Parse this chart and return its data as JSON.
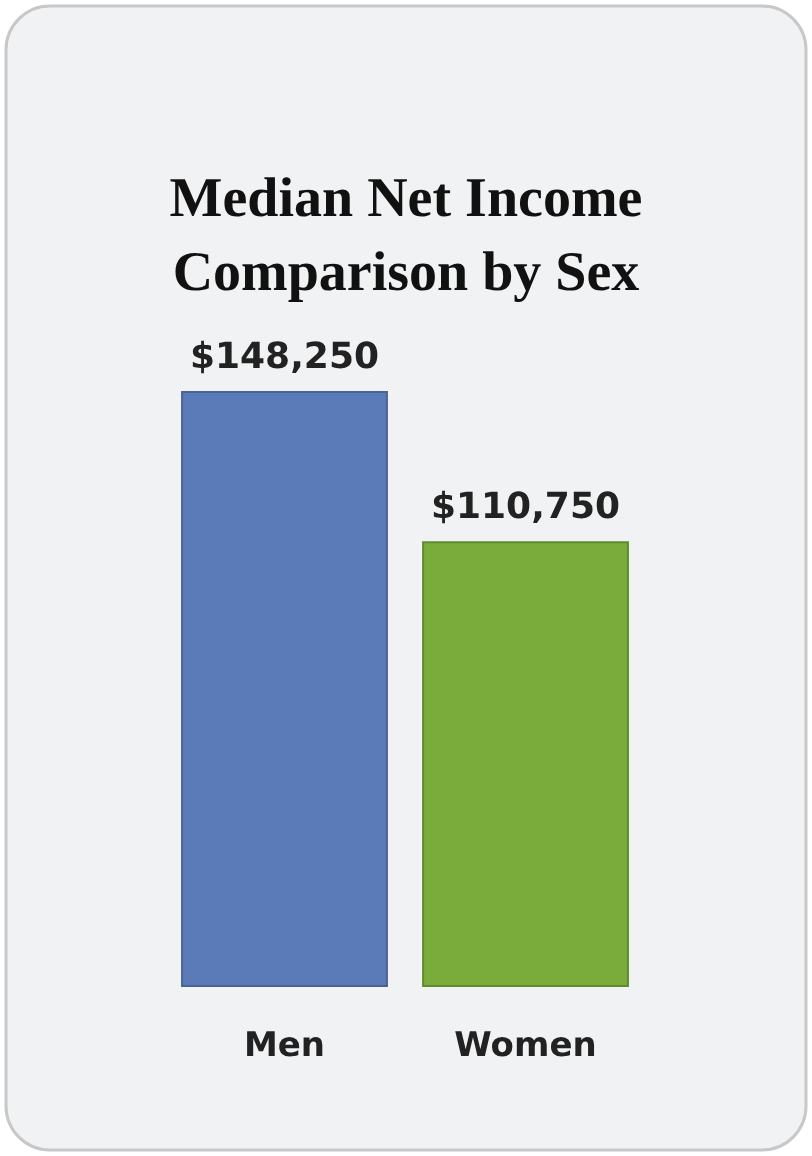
{
  "chart_data": {
    "type": "bar",
    "title": "Median Net Income Comparison by Sex",
    "categories": [
      "Men",
      "Women"
    ],
    "values": [
      148250,
      110750
    ],
    "colors": [
      "#5b7bb8",
      "#7aac3c"
    ],
    "value_labels": [
      "$148,250",
      "$110,750"
    ]
  }
}
